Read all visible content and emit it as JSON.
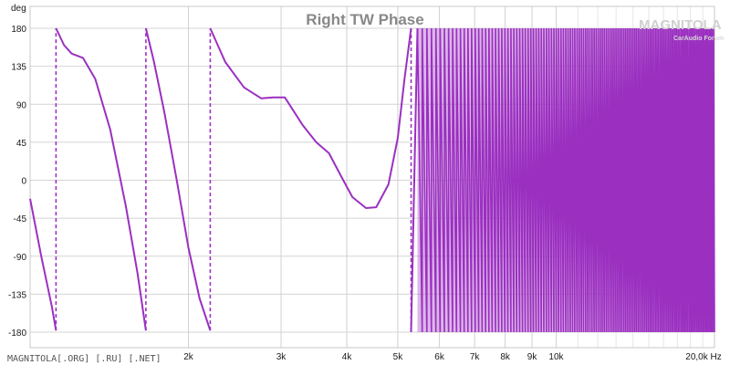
{
  "chart_data": {
    "type": "line",
    "title": "Right TW Phase",
    "ylabel": "deg",
    "xunit": "Hz",
    "xscale": "log",
    "xlim": [
      1000,
      20000
    ],
    "ylim": [
      -190,
      190
    ],
    "grid": true,
    "yticks": [
      180,
      135,
      90,
      45,
      0,
      -45,
      -90,
      -135,
      -180
    ],
    "ytick_labels": [
      "180",
      "135",
      "90",
      "45",
      "0",
      "-45",
      "-90",
      "-135",
      "-180"
    ],
    "xticks": [
      2000,
      3000,
      4000,
      5000,
      6000,
      7000,
      8000,
      9000,
      10000,
      20000
    ],
    "xtick_labels": [
      "2k",
      "3k",
      "4k",
      "5k",
      "6k",
      "7k",
      "8k",
      "9k",
      "10k",
      "20,0k Hz"
    ],
    "series": [
      {
        "color": "#9b30c0",
        "note_wrap": "phase wraps -180 to 180",
        "points": [
          [
            1000,
            -22
          ],
          [
            1050,
            -90
          ],
          [
            1100,
            -150
          ],
          [
            1120,
            -178
          ],
          [
            1120,
            180
          ],
          [
            1160,
            160
          ],
          [
            1200,
            150
          ],
          [
            1260,
            145
          ],
          [
            1330,
            120
          ],
          [
            1420,
            60
          ],
          [
            1520,
            -30
          ],
          [
            1600,
            -110
          ],
          [
            1660,
            -178
          ],
          [
            1660,
            180
          ],
          [
            1720,
            140
          ],
          [
            1800,
            80
          ],
          [
            1900,
            0
          ],
          [
            2000,
            -80
          ],
          [
            2100,
            -140
          ],
          [
            2200,
            -178
          ],
          [
            2200,
            180
          ],
          [
            2350,
            140
          ],
          [
            2550,
            110
          ],
          [
            2750,
            97
          ],
          [
            2900,
            98
          ],
          [
            3050,
            98
          ],
          [
            3300,
            65
          ],
          [
            3500,
            45
          ],
          [
            3700,
            32
          ],
          [
            3900,
            5
          ],
          [
            4100,
            -20
          ],
          [
            4350,
            -33
          ],
          [
            4550,
            -32
          ],
          [
            4800,
            -5
          ],
          [
            5000,
            50
          ],
          [
            5150,
            120
          ],
          [
            5300,
            180
          ],
          [
            5300,
            -180
          ],
          [
            5450,
            180
          ]
        ],
        "dense_wrap_region": {
          "from": 5450,
          "to": 20000,
          "range": [
            -180,
            180
          ],
          "start_spacing_hz": 115,
          "end_spacing_hz": 60
        }
      }
    ],
    "watermark": "MAGNITOLA",
    "watermark_sub": "CarAudio Forum"
  },
  "footer": {
    "text": "MAGNITOLA[.ORG] [.RU] [.NET]"
  }
}
